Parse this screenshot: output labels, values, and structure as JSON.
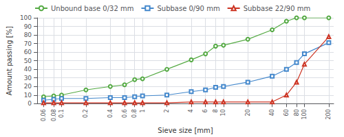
{
  "chart_data": {
    "type": "line",
    "xlabel": "Sieve size [mm]",
    "ylabel": "Amount passing [%]",
    "x": [
      0.06,
      0.08,
      0.1,
      0.2,
      0.4,
      0.6,
      0.8,
      1,
      2,
      4,
      6,
      8,
      10,
      20,
      40,
      60,
      80,
      100,
      200
    ],
    "series": [
      {
        "name": "Unbound base 0/32 mm",
        "color": "#55aa44",
        "marker": "circle",
        "values": [
          8,
          9,
          10,
          16,
          20,
          22,
          28,
          29,
          40,
          51,
          58,
          67,
          68,
          75,
          86,
          96,
          100,
          100,
          100
        ]
      },
      {
        "name": "Subbase 0/90 mm",
        "color": "#4488cc",
        "marker": "square",
        "values": [
          4,
          5,
          6,
          6,
          7,
          7,
          8,
          9,
          10,
          14,
          16,
          19,
          20,
          25,
          32,
          40,
          48,
          58,
          71
        ]
      },
      {
        "name": "Subbase 22/90 mm",
        "color": "#cc3322",
        "marker": "triangle",
        "values": [
          1,
          1,
          1,
          1,
          1,
          1,
          1,
          1,
          1,
          2,
          2,
          2,
          2,
          2,
          2,
          10,
          25,
          46,
          78
        ]
      }
    ],
    "log": "x",
    "xlim": [
      0.05,
      230
    ],
    "xticks": [
      0.06,
      0.08,
      0.1,
      0.2,
      0.4,
      0.6,
      0.8,
      1,
      2,
      4,
      6,
      8,
      10,
      20,
      40,
      60,
      80,
      100,
      200
    ],
    "ylim": [
      0,
      100
    ],
    "yticks": [
      0,
      10,
      20,
      30,
      40,
      50,
      60,
      70,
      80,
      90,
      100
    ],
    "grid": true,
    "legend": "upper left"
  }
}
